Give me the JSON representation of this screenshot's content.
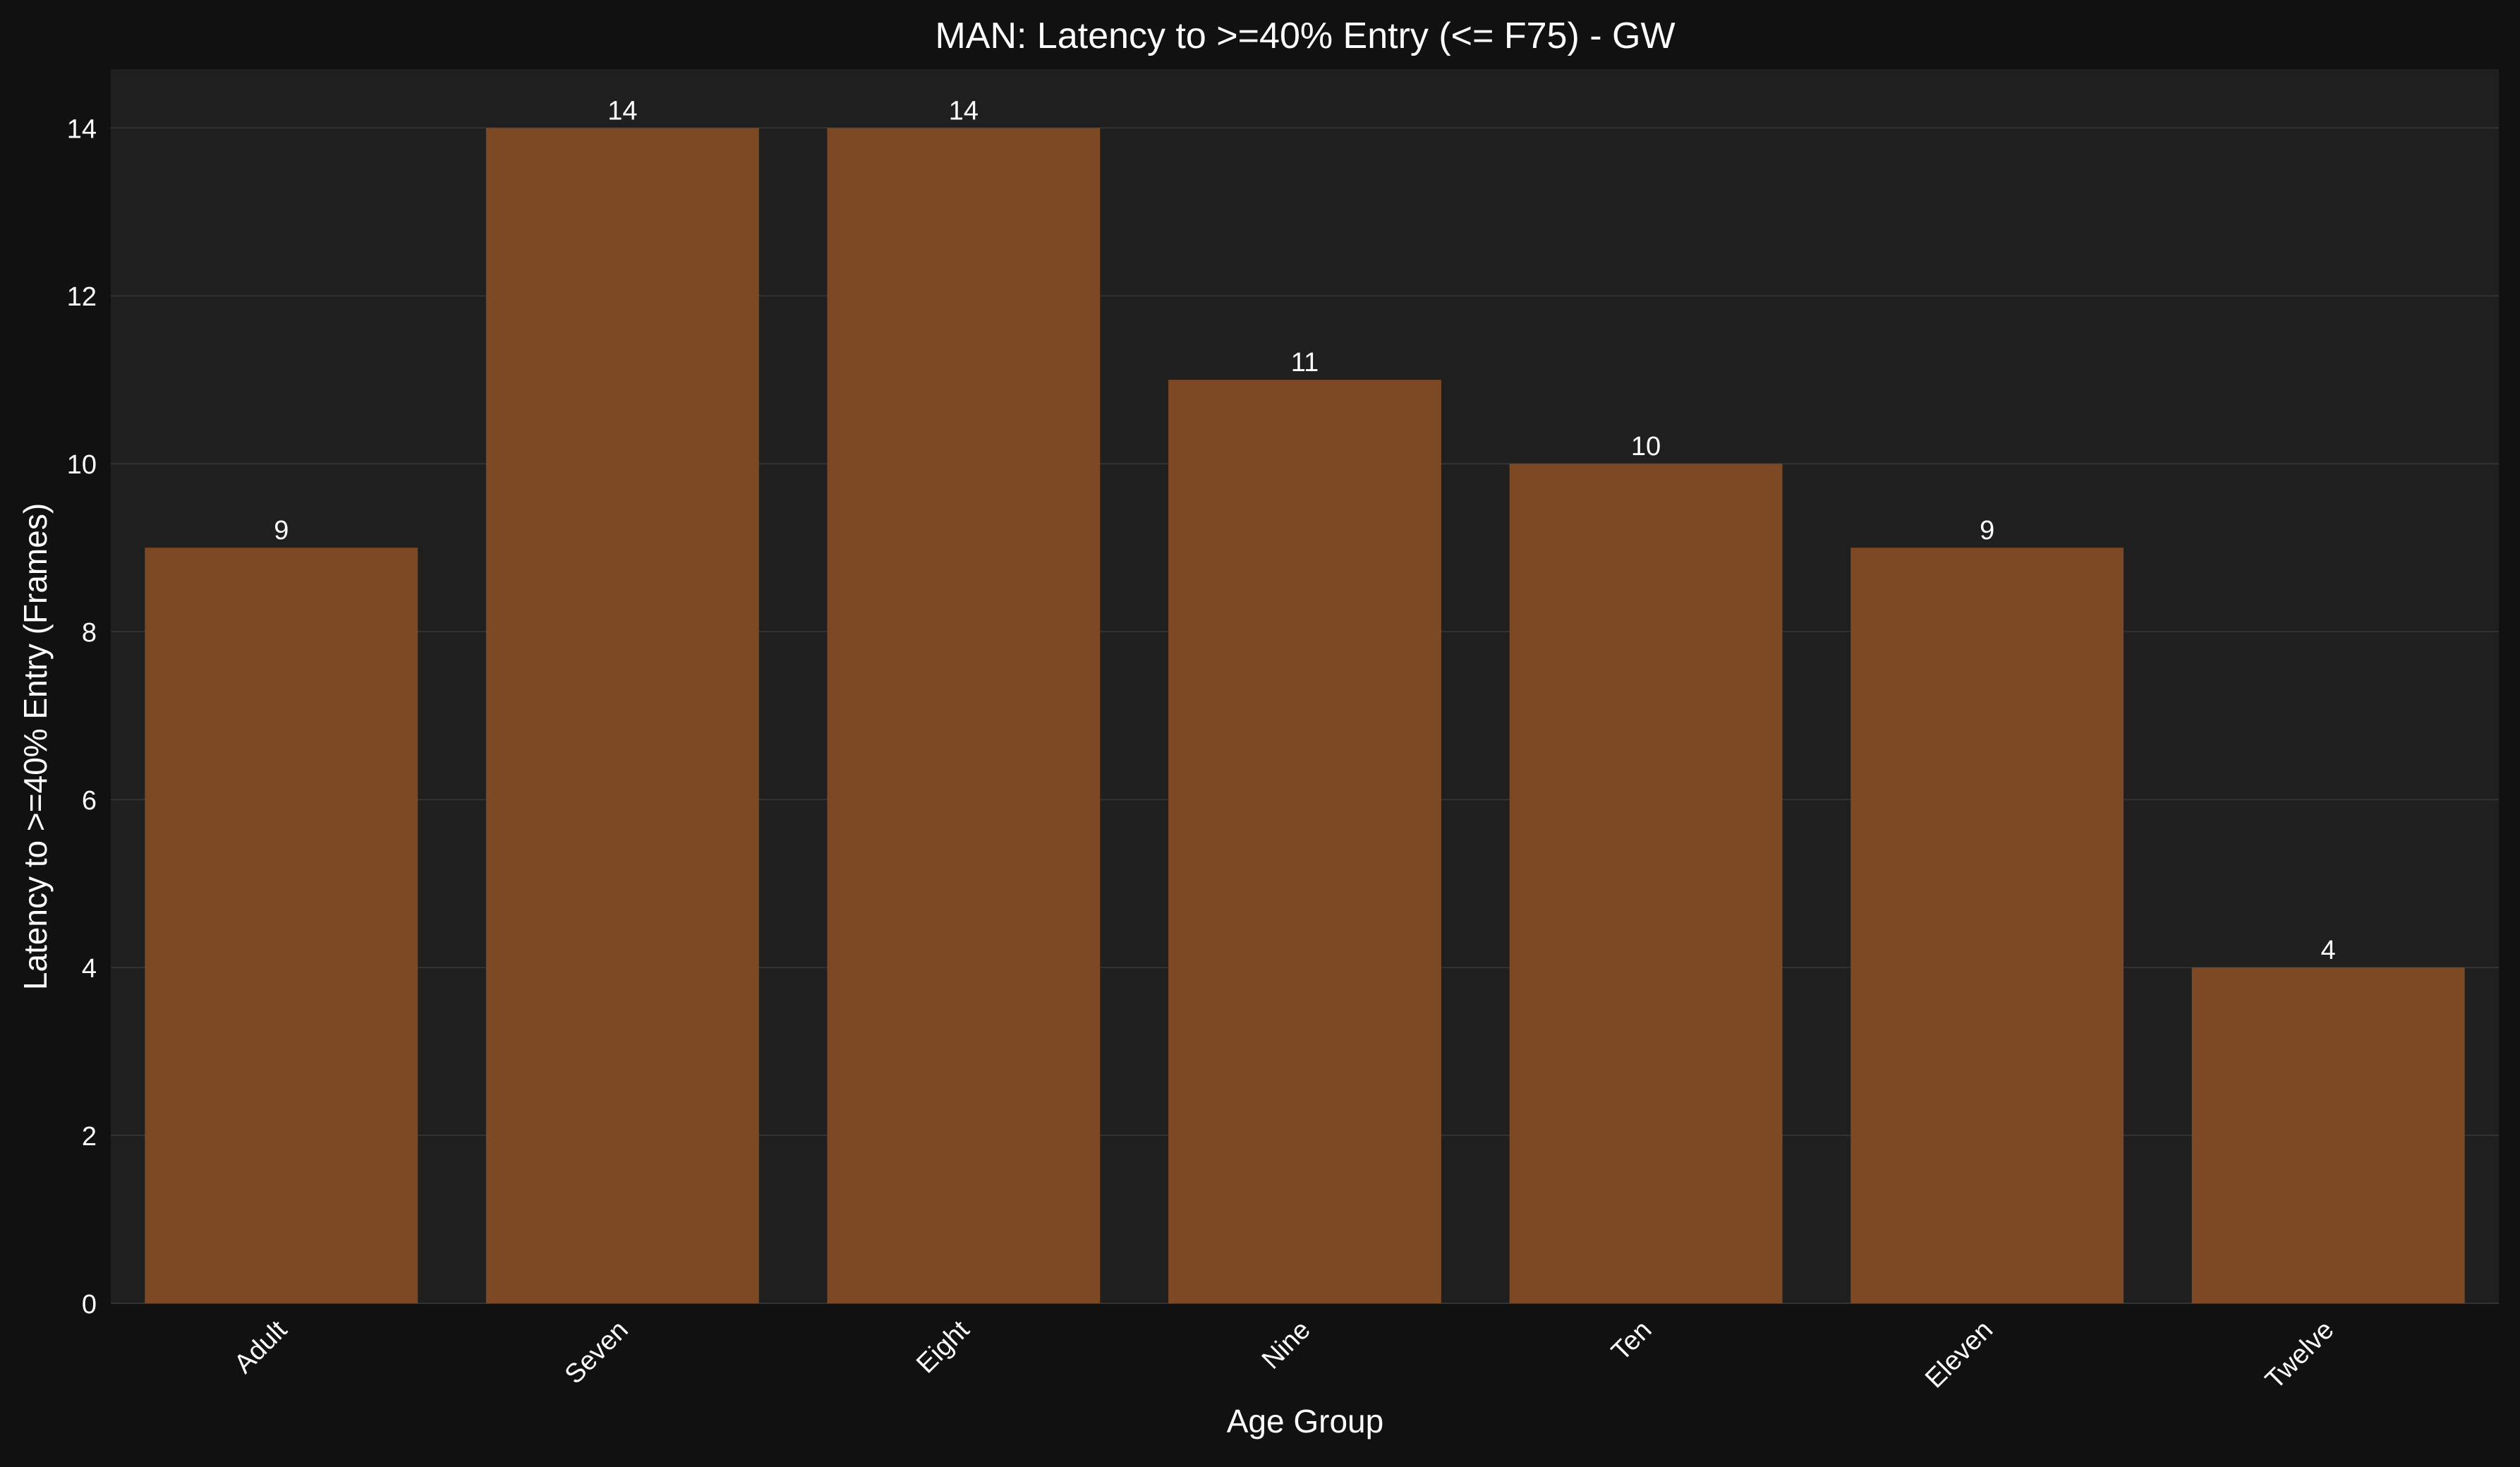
{
  "chart_data": {
    "type": "bar",
    "title": "MAN: Latency to >=40% Entry (<= F75) - GW",
    "xlabel": "Age Group",
    "ylabel": "Latency to >=40% Entry (Frames)",
    "categories": [
      "Adult",
      "Seven",
      "Eight",
      "Nine",
      "Ten",
      "Eleven",
      "Twelve"
    ],
    "values": [
      9,
      14,
      14,
      11,
      10,
      9,
      4
    ],
    "data_labels": [
      "9",
      "14",
      "14",
      "11",
      "10",
      "9",
      "4"
    ],
    "ylim": [
      0,
      14.7
    ],
    "yticks": [
      0,
      2,
      4,
      6,
      8,
      10,
      12,
      14
    ],
    "ytick_labels": [
      "0",
      "2",
      "4",
      "6",
      "8",
      "10",
      "12",
      "14"
    ],
    "grid": true,
    "colors": {
      "figure_background": "#111111",
      "plot_background": "#1f1f1f",
      "bar": "#7d4824",
      "grid": "#333333",
      "text": "#ffffff"
    }
  }
}
